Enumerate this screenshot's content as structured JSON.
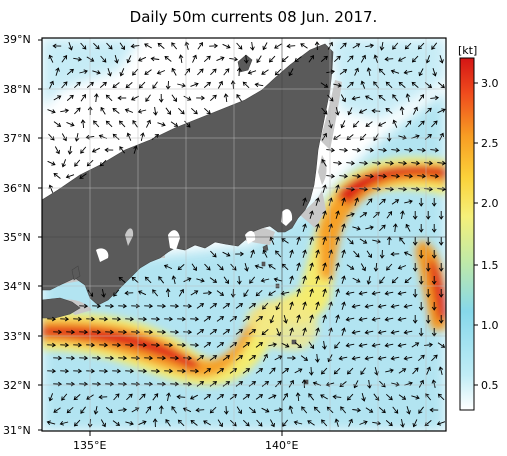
{
  "title": "Daily 50m currents 08 Jun. 2017.",
  "map": {
    "lat_range": [
      31,
      39
    ],
    "lon_range": [
      133.8,
      143.8
    ],
    "lat_ticks": [
      "39°N",
      "38°N",
      "37°N",
      "36°N",
      "35°N",
      "34°N",
      "33°N",
      "32°N",
      "31°N"
    ],
    "lon_ticks": [
      "135°E",
      "140°E"
    ],
    "land_color": "#5a5a5a",
    "shelf_color": "#c8c8c8",
    "arrow_color": "#000000"
  },
  "colorbar": {
    "unit": "[kt]",
    "ticks": [
      "3.0",
      "2.5",
      "2.0",
      "1.5",
      "1.0",
      "0.5"
    ],
    "range": [
      0.2,
      3.2
    ],
    "colors": [
      "#ffffff",
      "#c0ecf6",
      "#86d8ea",
      "#bfe9a8",
      "#f5f07a",
      "#fbd23a",
      "#f79c23",
      "#ef4b1d",
      "#d41515"
    ]
  }
}
